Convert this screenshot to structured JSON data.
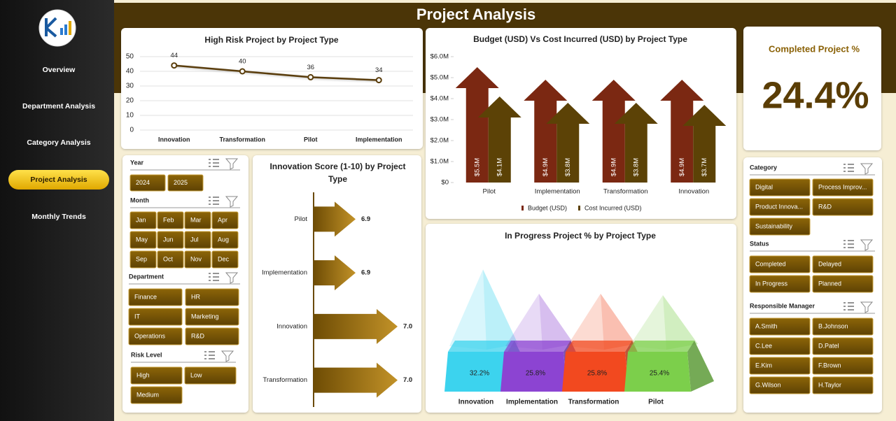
{
  "header": {
    "title": "Project Analysis"
  },
  "nav": [
    "Overview",
    "Department Analysis",
    "Category Analysis",
    "Project Analysis",
    "Monthly Trends"
  ],
  "kpi": {
    "title": "Completed Project %",
    "value": "24.4%"
  },
  "chart_data": [
    {
      "type": "line",
      "title": "High Risk Project by Project Type",
      "categories": [
        "Innovation",
        "Transformation",
        "Pilot",
        "Implementation"
      ],
      "values": [
        44,
        40,
        36,
        34
      ],
      "color": "#5a3d0a",
      "ylim": [
        0,
        50
      ],
      "yticks": [
        0,
        10,
        20,
        30,
        40,
        50
      ],
      "grid": true
    },
    {
      "type": "arrowbar",
      "title": "Budget (USD) Vs Cost Incurred (USD) by Project Type",
      "categories": [
        "Pilot",
        "Implementation",
        "Transformation",
        "Innovation"
      ],
      "series": [
        {
          "name": "Budget (USD)",
          "color": "#7b2812",
          "values": [
            5500000,
            4900000,
            4900000,
            4900000
          ],
          "value_labels": [
            "$5.5M",
            "$4.9M",
            "$4.9M",
            "$4.9M"
          ]
        },
        {
          "name": "Cost Incurred (USD)",
          "color": "#5c4206",
          "values": [
            4100000,
            3800000,
            3800000,
            3700000
          ],
          "value_labels": [
            "$4.1M",
            "$3.8M",
            "$3.8M",
            "$3.7M"
          ]
        }
      ],
      "ylim": [
        0,
        6000000
      ],
      "yticks": [
        {
          "value": 0,
          "label": "$0"
        },
        {
          "value": 1000000,
          "label": "$1.0M"
        },
        {
          "value": 2000000,
          "label": "$2.0M"
        },
        {
          "value": 3000000,
          "label": "$3.0M"
        },
        {
          "value": 4000000,
          "label": "$4.0M"
        },
        {
          "value": 5000000,
          "label": "$5.0M"
        },
        {
          "value": 6000000,
          "label": "$6.0M"
        }
      ],
      "legend": "bottom"
    },
    {
      "type": "harrow",
      "title": "Innovation Score (1-10) by Project Type",
      "categories": [
        "Pilot",
        "Implementation",
        "Innovation",
        "Transformation"
      ],
      "values": [
        6.9,
        6.9,
        7.0,
        7.0
      ],
      "value_labels": [
        "6.9",
        "6.9",
        "7.0",
        "7.0"
      ],
      "xlim": [
        6.8,
        7.0
      ],
      "color": "#8a6106"
    },
    {
      "type": "pyramid",
      "title": "In Progress Project % by Project Type",
      "categories": [
        "Innovation",
        "Implementation",
        "Transformation",
        "Pilot"
      ],
      "values": [
        32.2,
        25.8,
        25.8,
        25.4
      ],
      "value_labels": [
        "32.2%",
        "25.8%",
        "25.8%",
        "25.4%"
      ],
      "colors": [
        "#3cd3ee",
        "#8c44d2",
        "#f2491f",
        "#7ccf4b"
      ],
      "ylim": [
        0,
        35
      ]
    }
  ],
  "filters": [
    {
      "title": "Year",
      "options": [
        "2024",
        "2025"
      ]
    },
    {
      "title": "Month",
      "options": [
        "Jan",
        "Feb",
        "Mar",
        "Apr",
        "May",
        "Jun",
        "Jul",
        "Aug",
        "Sep",
        "Oct",
        "Nov",
        "Dec"
      ]
    },
    {
      "title": "Department",
      "options": [
        "Finance",
        "HR",
        "IT",
        "Marketing",
        "Operations",
        "R&D"
      ]
    },
    {
      "title": "Risk Level",
      "options": [
        "High",
        "Low",
        "Medium"
      ]
    },
    {
      "title": "Category",
      "options": [
        "Digital",
        "Process Improv...",
        "Product Innova...",
        "R&D",
        "Sustainability"
      ]
    },
    {
      "title": "Status",
      "options": [
        "Completed",
        "Delayed",
        "In Progress",
        "Planned"
      ]
    },
    {
      "title": "Responsible Manager",
      "options": [
        "A.Smith",
        "B.Johnson",
        "C.Lee",
        "D.Patel",
        "E.Kim",
        "F.Brown",
        "G.Wilson",
        "H.Taylor"
      ]
    }
  ]
}
